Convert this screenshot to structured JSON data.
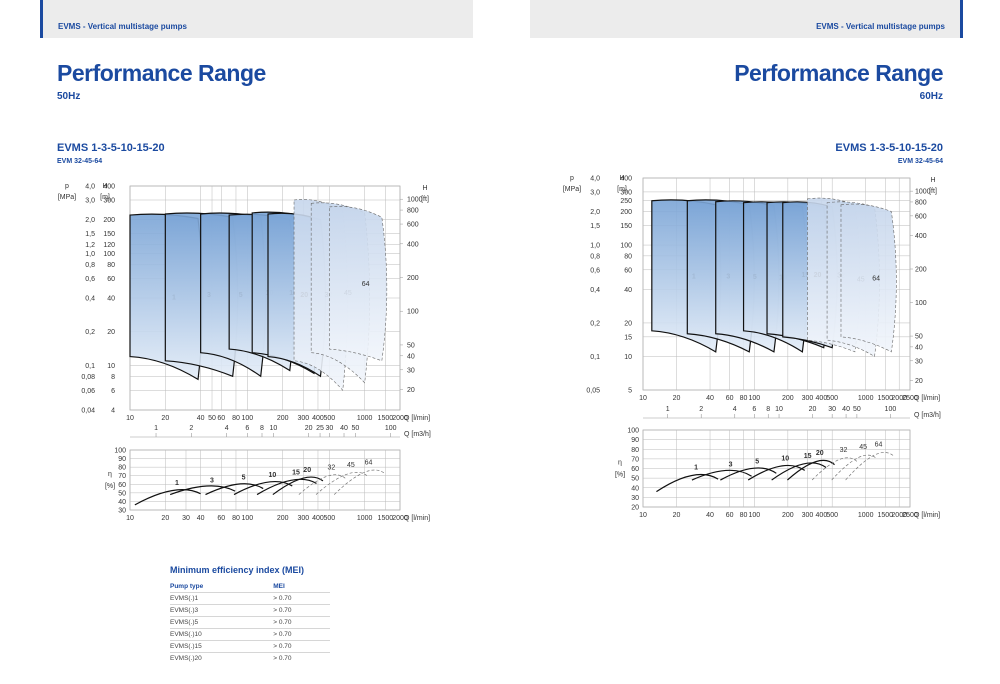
{
  "header": {
    "left_text": "EVMS - Vertical multistage pumps",
    "right_text": "EVMS - Vertical multistage pumps"
  },
  "left": {
    "title": "Performance Range",
    "subtitle": "50Hz",
    "section_title": "EVMS 1-3-5-10-15-20",
    "section_sub": "EVM 32-45-64"
  },
  "right": {
    "title": "Performance Range",
    "subtitle": "60Hz",
    "section_title": "EVMS 1-3-5-10-15-20",
    "section_sub": "EVM 32-45-64"
  },
  "chart_data": [
    {
      "type": "area",
      "title": "Performance Range 50Hz",
      "xlabel": "Q [l/min]",
      "x2label": "Q [m3/h]",
      "ylabel": "H [m]",
      "y2label": "p [MPa]",
      "y3label": "H [ft]",
      "x_ticks": [
        "10",
        "20",
        "40",
        "50",
        "60",
        "80",
        "100",
        "200",
        "300",
        "400",
        "500",
        "1000",
        "1500",
        "2000"
      ],
      "x2_ticks": [
        "1",
        "2",
        "4",
        "6",
        "8",
        "10",
        "20",
        "25",
        "30",
        "40",
        "50",
        "100"
      ],
      "h_ticks": [
        "400",
        "300",
        "200",
        "150",
        "120",
        "100",
        "80",
        "60",
        "40",
        "20",
        "10",
        "8",
        "6",
        "4"
      ],
      "p_ticks": [
        "4,0",
        "3,0",
        "2,0",
        "1,5",
        "1,2",
        "1,0",
        "0,8",
        "0,6",
        "0,4",
        "0,2",
        "0,1",
        "0,08",
        "0,06",
        "0,04"
      ],
      "ft_ticks": [
        "1000",
        "800",
        "600",
        "400",
        "200",
        "100",
        "50",
        "40",
        "30",
        "20"
      ],
      "series": [
        {
          "name": "1",
          "q": [
            10,
            38
          ],
          "h_top": [
            220,
            205
          ],
          "h_bottom": [
            12,
            7.5
          ],
          "style": "solid"
        },
        {
          "name": "3",
          "q": [
            20,
            75
          ],
          "h_top": [
            225,
            210
          ],
          "h_bottom": [
            11,
            8
          ],
          "style": "solid"
        },
        {
          "name": "5",
          "q": [
            40,
            130
          ],
          "h_top": [
            225,
            210
          ],
          "h_bottom": [
            13,
            8
          ],
          "style": "solid"
        },
        {
          "name": "10",
          "q": [
            70,
            230
          ],
          "h_top": [
            220,
            200
          ],
          "h_bottom": [
            14,
            9
          ],
          "style": "solid"
        },
        {
          "name": "15",
          "q": [
            110,
            370
          ],
          "h_top": [
            230,
            205
          ],
          "h_bottom": [
            13,
            8.5
          ],
          "style": "solid"
        },
        {
          "name": "20",
          "q": [
            150,
            420
          ],
          "h_top": [
            225,
            200
          ],
          "h_bottom": [
            12,
            8
          ],
          "style": "solid"
        },
        {
          "name": "32",
          "q": [
            250,
            650
          ],
          "h_top": [
            300,
            240
          ],
          "h_bottom": [
            11,
            6
          ],
          "style": "dashed"
        },
        {
          "name": "45",
          "q": [
            350,
            1000
          ],
          "h_top": [
            280,
            230
          ],
          "h_bottom": [
            13,
            7
          ],
          "style": "dashed"
        },
        {
          "name": "64",
          "q": [
            500,
            1400
          ],
          "h_top": [
            260,
            210
          ],
          "h_bottom": [
            14,
            11
          ],
          "style": "dashed"
        }
      ],
      "efficiency": {
        "ylabel": "η [%]",
        "y_ticks": [
          "100",
          "90",
          "80",
          "70",
          "60",
          "50",
          "40",
          "30"
        ],
        "x_ticks": [
          "10",
          "20",
          "30",
          "40",
          "60",
          "80",
          "100",
          "200",
          "300",
          "400",
          "500",
          "1000",
          "1500",
          "2000"
        ],
        "curves": [
          "1",
          "3",
          "5",
          "10",
          "15",
          "20",
          "32",
          "45",
          "64"
        ]
      }
    },
    {
      "type": "area",
      "title": "Performance Range 60Hz",
      "xlabel": "Q [l/min]",
      "x2label": "Q [m3/h]",
      "ylabel": "H [m]",
      "y2label": "p [MPa]",
      "y3label": "H [ft]",
      "x_ticks": [
        "10",
        "20",
        "40",
        "60",
        "80",
        "100",
        "200",
        "300",
        "400",
        "500",
        "1000",
        "1500",
        "2000",
        "2500"
      ],
      "x2_ticks": [
        "1",
        "2",
        "4",
        "6",
        "8",
        "10",
        "20",
        "30",
        "40",
        "50",
        "100"
      ],
      "h_ticks": [
        "400",
        "300",
        "250",
        "200",
        "150",
        "100",
        "80",
        "60",
        "40",
        "20",
        "15",
        "10",
        "5"
      ],
      "p_ticks": [
        "4,0",
        "3,0",
        "2,0",
        "1,5",
        "1,0",
        "0,8",
        "0,6",
        "0,4",
        "0,2",
        "0,1",
        "0,05"
      ],
      "ft_ticks": [
        "1000",
        "800",
        "600",
        "400",
        "200",
        "100",
        "50",
        "40",
        "30",
        "20"
      ],
      "series": [
        {
          "name": "1",
          "q": [
            12,
            45
          ],
          "h_top": [
            250,
            230
          ],
          "h_bottom": [
            17,
            11
          ],
          "style": "solid"
        },
        {
          "name": "3",
          "q": [
            25,
            90
          ],
          "h_top": [
            250,
            230
          ],
          "h_bottom": [
            16,
            11
          ],
          "style": "solid"
        },
        {
          "name": "5",
          "q": [
            45,
            150
          ],
          "h_top": [
            245,
            225
          ],
          "h_bottom": [
            16,
            11
          ],
          "style": "solid"
        },
        {
          "name": "10",
          "q": [
            80,
            270
          ],
          "h_top": [
            240,
            220
          ],
          "h_bottom": [
            17,
            11
          ],
          "style": "solid"
        },
        {
          "name": "15",
          "q": [
            130,
            420
          ],
          "h_top": [
            240,
            220
          ],
          "h_bottom": [
            16,
            12
          ],
          "style": "solid"
        },
        {
          "name": "20",
          "q": [
            180,
            500
          ],
          "h_top": [
            240,
            220
          ],
          "h_bottom": [
            15,
            12
          ],
          "style": "solid"
        },
        {
          "name": "32",
          "q": [
            300,
            800
          ],
          "h_top": [
            260,
            230
          ],
          "h_bottom": [
            14,
            11
          ],
          "style": "dashed"
        },
        {
          "name": "45",
          "q": [
            450,
            1200
          ],
          "h_top": [
            240,
            220
          ],
          "h_bottom": [
            14,
            10
          ],
          "style": "dashed"
        },
        {
          "name": "64",
          "q": [
            600,
            1700
          ],
          "h_top": [
            230,
            200
          ],
          "h_bottom": [
            15,
            11
          ],
          "style": "dashed"
        }
      ],
      "efficiency": {
        "ylabel": "η [%]",
        "y_ticks": [
          "100",
          "90",
          "80",
          "70",
          "60",
          "50",
          "40",
          "30",
          "20"
        ],
        "x_ticks": [
          "10",
          "20",
          "40",
          "60",
          "80",
          "100",
          "200",
          "300",
          "400",
          "500",
          "1000",
          "1500",
          "2000",
          "2500"
        ],
        "curves": [
          "1",
          "3",
          "5",
          "10",
          "15",
          "20",
          "32",
          "45",
          "64"
        ]
      }
    }
  ],
  "mei": {
    "title": "Minimum efficiency index (MEI)",
    "col_type": "Pump type",
    "col_mei": "MEI",
    "rows": [
      {
        "type": "EVMS(.)1",
        "mei": "> 0.70"
      },
      {
        "type": "EVMS(.)3",
        "mei": "> 0.70"
      },
      {
        "type": "EVMS(.)5",
        "mei": "> 0.70"
      },
      {
        "type": "EVMS(.)10",
        "mei": "> 0.70"
      },
      {
        "type": "EVMS(.)15",
        "mei": "> 0.70"
      },
      {
        "type": "EVMS(.)20",
        "mei": "> 0.70"
      }
    ]
  },
  "colors": {
    "brand": "#1b4aa0",
    "fill_dark": "#7aa4d6",
    "fill_light": "#e3ecf7"
  }
}
